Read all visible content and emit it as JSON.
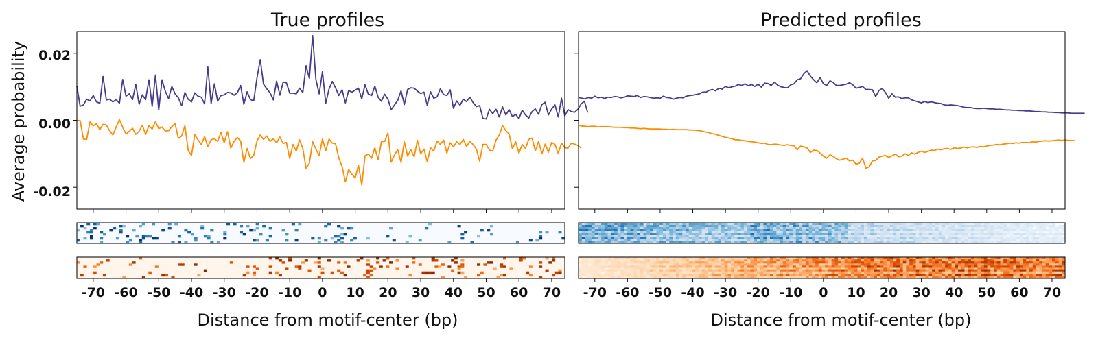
{
  "chart_data": [
    {
      "type": "line",
      "panel": "left",
      "title": "True profiles",
      "ylabel": "Average probability",
      "xlabel": "Distance from motif-center (bp)",
      "xlim": [
        -75,
        74
      ],
      "ylim": [
        -0.0265,
        0.0265
      ],
      "yticks": [
        "0.02",
        "0.00",
        "-0.02"
      ],
      "xticks": [
        "-70",
        "-60",
        "-50",
        "-40",
        "-30",
        "-20",
        "-10",
        "0",
        "10",
        "20",
        "30",
        "40",
        "50",
        "60",
        "70"
      ],
      "x_start": -75,
      "series": [
        {
          "color": "#463b8c",
          "values": [
            0.0102,
            0.0042,
            0.0046,
            0.0063,
            0.0058,
            0.0074,
            0.0055,
            0.0051,
            0.0131,
            0.0061,
            0.0063,
            0.0055,
            0.0062,
            0.0051,
            0.0122,
            0.0072,
            0.0079,
            0.0062,
            0.0107,
            0.0048,
            0.0076,
            0.0062,
            0.0121,
            0.0042,
            0.0135,
            0.0031,
            0.0121,
            0.0087,
            0.0065,
            0.0101,
            0.0079,
            0.0067,
            0.0044,
            0.0083,
            0.0063,
            0.0055,
            0.0082,
            0.0072,
            0.0069,
            0.0049,
            0.0159,
            0.005,
            0.0109,
            0.0057,
            0.0074,
            0.0076,
            0.0083,
            0.0082,
            0.0075,
            0.0082,
            0.0104,
            0.0048,
            0.0085,
            0.0062,
            0.0058,
            0.0126,
            0.0181,
            0.0108,
            0.0094,
            0.0082,
            0.0061,
            0.0117,
            0.0075,
            0.0114,
            0.0112,
            0.0081,
            0.0081,
            0.0079,
            0.0096,
            0.0083,
            0.0163,
            0.0125,
            0.0253,
            0.0122,
            0.0079,
            0.0145,
            0.0051,
            0.0093,
            0.0116,
            0.0097,
            0.0074,
            0.0091,
            0.0052,
            0.0089,
            0.0084,
            0.009,
            0.0096,
            0.0064,
            0.0106,
            0.0078,
            0.0074,
            0.0102,
            0.0069,
            0.0057,
            0.0078,
            0.0063,
            0.0032,
            0.0046,
            0.006,
            0.0088,
            0.0047,
            0.0092,
            0.0097,
            0.0096,
            0.0087,
            0.008,
            0.0084,
            0.0045,
            0.0085,
            0.0066,
            0.007,
            0.0094,
            0.0077,
            0.0074,
            0.0091,
            0.0036,
            0.0058,
            0.0045,
            0.0063,
            0.0056,
            0.0069,
            0.0053,
            0.0041,
            0.0044,
            0.0006,
            0.0004,
            0.0033,
            0.002,
            0.0033,
            0.001,
            0.004,
            0.0016,
            0.0032,
            0.0011,
            0.0018,
            0.0005,
            0.003,
            0.0016,
            0.0007,
            0.0026,
            0.0034,
            0.0018,
            0.0047,
            0.0054,
            0.0016,
            0.0034,
            0.0046,
            0.001,
            0.0066,
            0.0013,
            0.0032,
            0.0026,
            0.0024,
            0.0033,
            0.0049,
            0.0057,
            0.0023
          ]
        },
        {
          "color": "#ff8c00",
          "values": [
            0.0,
            -0.0001,
            -0.0056,
            -0.0057,
            -0.0005,
            -0.0017,
            -0.001,
            -0.0028,
            -0.0012,
            -0.0014,
            -0.0031,
            -0.0044,
            -0.002,
            0.0002,
            -0.0021,
            -0.0041,
            -0.0033,
            -0.0024,
            -0.0042,
            -0.0033,
            -0.0015,
            -0.0042,
            -0.0016,
            -0.0026,
            -0.0004,
            -0.0025,
            -0.002,
            -0.0032,
            -0.0031,
            -0.0019,
            -0.001,
            -0.0054,
            -0.0047,
            -0.0016,
            -0.009,
            -0.0105,
            -0.0043,
            -0.0058,
            -0.0072,
            -0.0049,
            -0.0078,
            -0.0058,
            -0.0055,
            -0.0063,
            -0.0036,
            -0.0067,
            -0.0034,
            -0.0083,
            -0.0063,
            -0.0051,
            -0.0062,
            -0.0126,
            -0.0084,
            -0.0114,
            -0.0105,
            -0.0062,
            -0.0044,
            -0.0057,
            -0.0047,
            -0.0063,
            -0.0055,
            -0.0067,
            -0.005,
            -0.0069,
            -0.0066,
            -0.0114,
            -0.0072,
            -0.0092,
            -0.0058,
            -0.0084,
            -0.0143,
            -0.0128,
            -0.0064,
            -0.0086,
            -0.0105,
            -0.0056,
            -0.0091,
            -0.0056,
            -0.0068,
            -0.007,
            -0.0113,
            -0.0138,
            -0.0184,
            -0.0147,
            -0.0161,
            -0.0172,
            -0.0134,
            -0.0193,
            -0.0106,
            -0.0101,
            -0.0113,
            -0.0082,
            -0.0118,
            -0.0064,
            -0.0063,
            -0.0038,
            -0.0125,
            -0.0103,
            -0.0088,
            -0.0126,
            -0.0064,
            -0.0107,
            -0.0088,
            -0.0109,
            -0.006,
            -0.01,
            -0.0086,
            -0.0124,
            -0.0082,
            -0.0092,
            -0.0062,
            -0.0072,
            -0.0059,
            -0.0098,
            -0.0067,
            -0.0079,
            -0.0064,
            -0.0072,
            -0.0057,
            -0.0078,
            -0.0063,
            -0.0072,
            -0.0086,
            -0.0122,
            -0.0072,
            -0.0072,
            -0.0089,
            -0.0092,
            -0.0059,
            -0.0044,
            -0.0016,
            -0.0031,
            -0.0041,
            -0.0085,
            -0.0064,
            -0.0098,
            -0.0072,
            -0.0084,
            -0.0057,
            -0.0053,
            -0.0091,
            -0.0063,
            -0.01,
            -0.0071,
            -0.0095,
            -0.0066,
            -0.0072,
            -0.0099,
            -0.0068,
            -0.0082,
            -0.0083,
            -0.0068,
            -0.0071,
            -0.0075,
            -0.0083
          ]
        }
      ]
    },
    {
      "type": "line",
      "panel": "right",
      "title": "Predicted profiles",
      "ylabel": "",
      "xlabel": "Distance from motif-center (bp)",
      "xlim": [
        -75,
        74
      ],
      "ylim": [
        -0.0265,
        0.0265
      ],
      "xticks": [
        "-70",
        "-60",
        "-50",
        "-40",
        "-30",
        "-20",
        "-10",
        "0",
        "10",
        "20",
        "30",
        "40",
        "50",
        "60",
        "70"
      ],
      "x_start": -75,
      "series": [
        {
          "color": "#463b8c",
          "values": [
            0.0068,
            0.0066,
            0.0064,
            0.0068,
            0.0066,
            0.0072,
            0.0067,
            0.0069,
            0.0065,
            0.0069,
            0.0068,
            0.0071,
            0.007,
            0.0067,
            0.0069,
            0.0073,
            0.0072,
            0.0071,
            0.0074,
            0.0068,
            0.0071,
            0.007,
            0.0068,
            0.0066,
            0.0067,
            0.0066,
            0.0072,
            0.0068,
            0.0067,
            0.0063,
            0.0066,
            0.0068,
            0.0067,
            0.0072,
            0.0074,
            0.0075,
            0.0077,
            0.0079,
            0.0084,
            0.0084,
            0.0089,
            0.0092,
            0.0088,
            0.0096,
            0.0093,
            0.0101,
            0.0097,
            0.01,
            0.0102,
            0.0107,
            0.0104,
            0.0109,
            0.0103,
            0.0107,
            0.0101,
            0.0108,
            0.0099,
            0.0111,
            0.011,
            0.0104,
            0.0114,
            0.0105,
            0.01,
            0.0098,
            0.0097,
            0.0106,
            0.0109,
            0.0121,
            0.0124,
            0.0139,
            0.0148,
            0.0132,
            0.0121,
            0.0112,
            0.0128,
            0.0109,
            0.0104,
            0.0118,
            0.0113,
            0.0104,
            0.0104,
            0.0106,
            0.0108,
            0.0112,
            0.0106,
            0.0096,
            0.0098,
            0.0101,
            0.0092,
            0.0092,
            0.0091,
            0.0071,
            0.0089,
            0.0095,
            0.0083,
            0.0066,
            0.0079,
            0.0069,
            0.007,
            0.0065,
            0.0067,
            0.0067,
            0.0061,
            0.0058,
            0.0055,
            0.0052,
            0.0056,
            0.0053,
            0.0055,
            0.0053,
            0.0051,
            0.005,
            0.0046,
            0.0045,
            0.0046,
            0.0045,
            0.0044,
            0.0042,
            0.0039,
            0.0038,
            0.0038,
            0.0036,
            0.0035,
            0.0035,
            0.0036,
            0.0035,
            0.0034,
            0.0034,
            0.0033,
            0.0033,
            0.0032,
            0.0031,
            0.0031,
            0.003,
            0.003,
            0.0029,
            0.0029,
            0.0028,
            0.0028,
            0.0027,
            0.0026,
            0.0026,
            0.0025,
            0.0025,
            0.0024,
            0.0024,
            0.0023,
            0.0023,
            0.0022,
            0.0022,
            0.0022,
            0.0021,
            0.0021,
            0.0021,
            0.0021,
            0.0021
          ]
        },
        {
          "color": "#ff8c00",
          "values": [
            -0.0015,
            -0.0017,
            -0.0018,
            -0.0019,
            -0.0018,
            -0.0018,
            -0.002,
            -0.0019,
            -0.0019,
            -0.0019,
            -0.002,
            -0.0021,
            -0.0021,
            -0.0021,
            -0.0022,
            -0.0022,
            -0.0023,
            -0.0023,
            -0.0024,
            -0.0025,
            -0.0024,
            -0.0025,
            -0.0026,
            -0.0026,
            -0.0026,
            -0.0026,
            -0.0027,
            -0.0027,
            -0.0028,
            -0.0027,
            -0.0028,
            -0.0028,
            -0.0028,
            -0.0028,
            -0.0029,
            -0.0029,
            -0.003,
            -0.0031,
            -0.0033,
            -0.0035,
            -0.0037,
            -0.004,
            -0.0042,
            -0.0045,
            -0.0048,
            -0.0051,
            -0.0053,
            -0.0055,
            -0.0058,
            -0.0058,
            -0.006,
            -0.0061,
            -0.0063,
            -0.0064,
            -0.0065,
            -0.0067,
            -0.0069,
            -0.0068,
            -0.0072,
            -0.0073,
            -0.0071,
            -0.0072,
            -0.0074,
            -0.0075,
            -0.0073,
            -0.0075,
            -0.0076,
            -0.0088,
            -0.0077,
            -0.0079,
            -0.0083,
            -0.0096,
            -0.0089,
            -0.009,
            -0.0098,
            -0.0107,
            -0.0113,
            -0.0103,
            -0.0108,
            -0.0115,
            -0.0119,
            -0.0116,
            -0.0113,
            -0.0121,
            -0.0119,
            -0.0131,
            -0.0128,
            -0.0113,
            -0.0143,
            -0.0139,
            -0.0121,
            -0.012,
            -0.011,
            -0.0107,
            -0.0105,
            -0.0111,
            -0.0106,
            -0.0101,
            -0.0109,
            -0.0107,
            -0.01,
            -0.0105,
            -0.0097,
            -0.0101,
            -0.0096,
            -0.0092,
            -0.0096,
            -0.0093,
            -0.0089,
            -0.009,
            -0.0086,
            -0.0088,
            -0.0085,
            -0.0084,
            -0.0087,
            -0.0082,
            -0.0084,
            -0.0083,
            -0.008,
            -0.0082,
            -0.008,
            -0.0079,
            -0.0081,
            -0.0078,
            -0.0079,
            -0.0077,
            -0.0075,
            -0.0074,
            -0.0072,
            -0.0073,
            -0.0071,
            -0.007,
            -0.0068,
            -0.0069,
            -0.0067,
            -0.0068,
            -0.0066,
            -0.0066,
            -0.0067,
            -0.0064,
            -0.0065,
            -0.0063,
            -0.0062,
            -0.0061,
            -0.0062,
            -0.0061,
            -0.006,
            -0.0059,
            -0.006,
            -0.0059,
            -0.006,
            -0.006,
            -0.0061
          ]
        }
      ]
    },
    {
      "type": "heatmap",
      "panel": "left",
      "strand": "positive",
      "colormap": "Blues",
      "rows": 10,
      "columns": 150,
      "pattern": "sparse",
      "seed": 11
    },
    {
      "type": "heatmap",
      "panel": "left",
      "strand": "negative",
      "colormap": "Oranges",
      "rows": 10,
      "columns": 150,
      "pattern": "sparse",
      "seed": 23
    },
    {
      "type": "heatmap",
      "panel": "right",
      "strand": "positive",
      "colormap": "Blues",
      "rows": 10,
      "columns": 150,
      "pattern": "dense",
      "seed": 37
    },
    {
      "type": "heatmap",
      "panel": "right",
      "strand": "negative",
      "colormap": "Oranges",
      "rows": 10,
      "columns": 150,
      "pattern": "dense",
      "seed": 51
    }
  ]
}
